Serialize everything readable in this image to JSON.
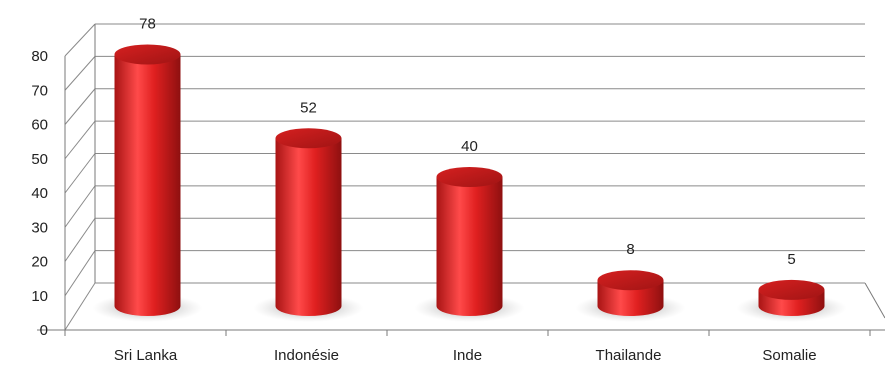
{
  "chart_data": {
    "type": "bar",
    "style": "3d-cylinder",
    "categories": [
      "Sri Lanka",
      "Indonésie",
      "Inde",
      "Thailande",
      "Somalie"
    ],
    "values": [
      78,
      52,
      40,
      8,
      5
    ],
    "data_labels": [
      "78",
      "52",
      "40",
      "8",
      "5"
    ],
    "title": "",
    "xlabel": "",
    "ylabel": "",
    "ylim": [
      0,
      80
    ],
    "yticks": [
      0,
      10,
      20,
      30,
      40,
      50,
      60,
      70,
      80
    ],
    "grid": true,
    "legend": "none",
    "colors": {
      "bar": "#e02020",
      "bar_dark": "#a81414",
      "bar_light": "#ff5a5a",
      "grid": "#8a8a8a"
    }
  }
}
